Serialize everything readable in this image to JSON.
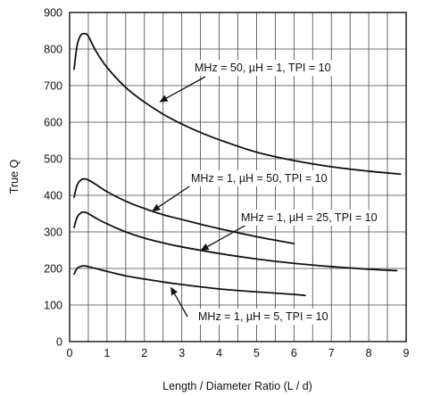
{
  "chart_data": {
    "type": "line",
    "title": "",
    "xlabel": "Length / Diameter Ratio (L / d)",
    "ylabel": "True Q",
    "xlim": [
      0,
      9
    ],
    "ylim": [
      0,
      900
    ],
    "xticks": [
      0,
      1,
      2,
      3,
      4,
      5,
      6,
      7,
      8,
      9
    ],
    "yticks": [
      0,
      100,
      200,
      300,
      400,
      500,
      600,
      700,
      800,
      900
    ],
    "grid": true,
    "grid_minor_x": 0.5,
    "grid_major_y": 100,
    "series": [
      {
        "name": "MHz = 50, µH = 1, TPI = 10",
        "x": [
          0.12,
          0.2,
          0.3,
          0.4,
          0.5,
          0.7,
          1.0,
          1.5,
          2.0,
          2.5,
          3.0,
          3.5,
          4.0,
          5.0,
          6.0,
          7.0,
          8.0,
          8.85
        ],
        "y": [
          745,
          810,
          838,
          842,
          835,
          795,
          750,
          695,
          655,
          622,
          595,
          572,
          552,
          518,
          495,
          478,
          466,
          458
        ]
      },
      {
        "name": "MHz = 1, µH = 50, TPI = 10",
        "x": [
          0.12,
          0.2,
          0.3,
          0.4,
          0.5,
          0.7,
          1.0,
          1.5,
          2.0,
          2.5,
          3.0,
          3.5,
          4.0,
          5.0,
          6.0
        ],
        "y": [
          395,
          428,
          442,
          445,
          442,
          430,
          410,
          384,
          364,
          347,
          334,
          321,
          309,
          287,
          268
        ]
      },
      {
        "name": "MHz = 1, µH = 25, TPI = 10",
        "x": [
          0.12,
          0.2,
          0.3,
          0.4,
          0.5,
          0.7,
          1.0,
          1.5,
          2.0,
          2.5,
          3.0,
          4.0,
          5.0,
          6.0,
          7.0,
          8.0,
          8.75
        ],
        "y": [
          312,
          340,
          352,
          354,
          350,
          338,
          322,
          300,
          283,
          270,
          259,
          241,
          226,
          214,
          205,
          198,
          194
        ]
      },
      {
        "name": "MHz = 1, µH = 5, TPI = 10",
        "x": [
          0.12,
          0.2,
          0.3,
          0.4,
          0.5,
          0.7,
          1.0,
          1.5,
          2.0,
          2.5,
          3.0,
          4.0,
          5.0,
          6.0,
          6.3
        ],
        "y": [
          185,
          200,
          206,
          207,
          205,
          200,
          192,
          180,
          171,
          163,
          156,
          144,
          136,
          129,
          126
        ]
      }
    ],
    "annotations": [
      {
        "text": "MHz = 50, µH = 1, TPI = 10",
        "series": 0,
        "target": [
          2.4,
          655
        ]
      },
      {
        "text": "MHz = 1, µH = 50, TPI = 10",
        "series": 1,
        "target": [
          2.2,
          356
        ]
      },
      {
        "text": "MHz = 1, µH = 25, TPI = 10",
        "series": 2,
        "target": [
          3.5,
          249
        ]
      },
      {
        "text": "MHz = 1, µH = 5, TPI = 10",
        "series": 3,
        "target": [
          2.7,
          150
        ]
      }
    ]
  }
}
